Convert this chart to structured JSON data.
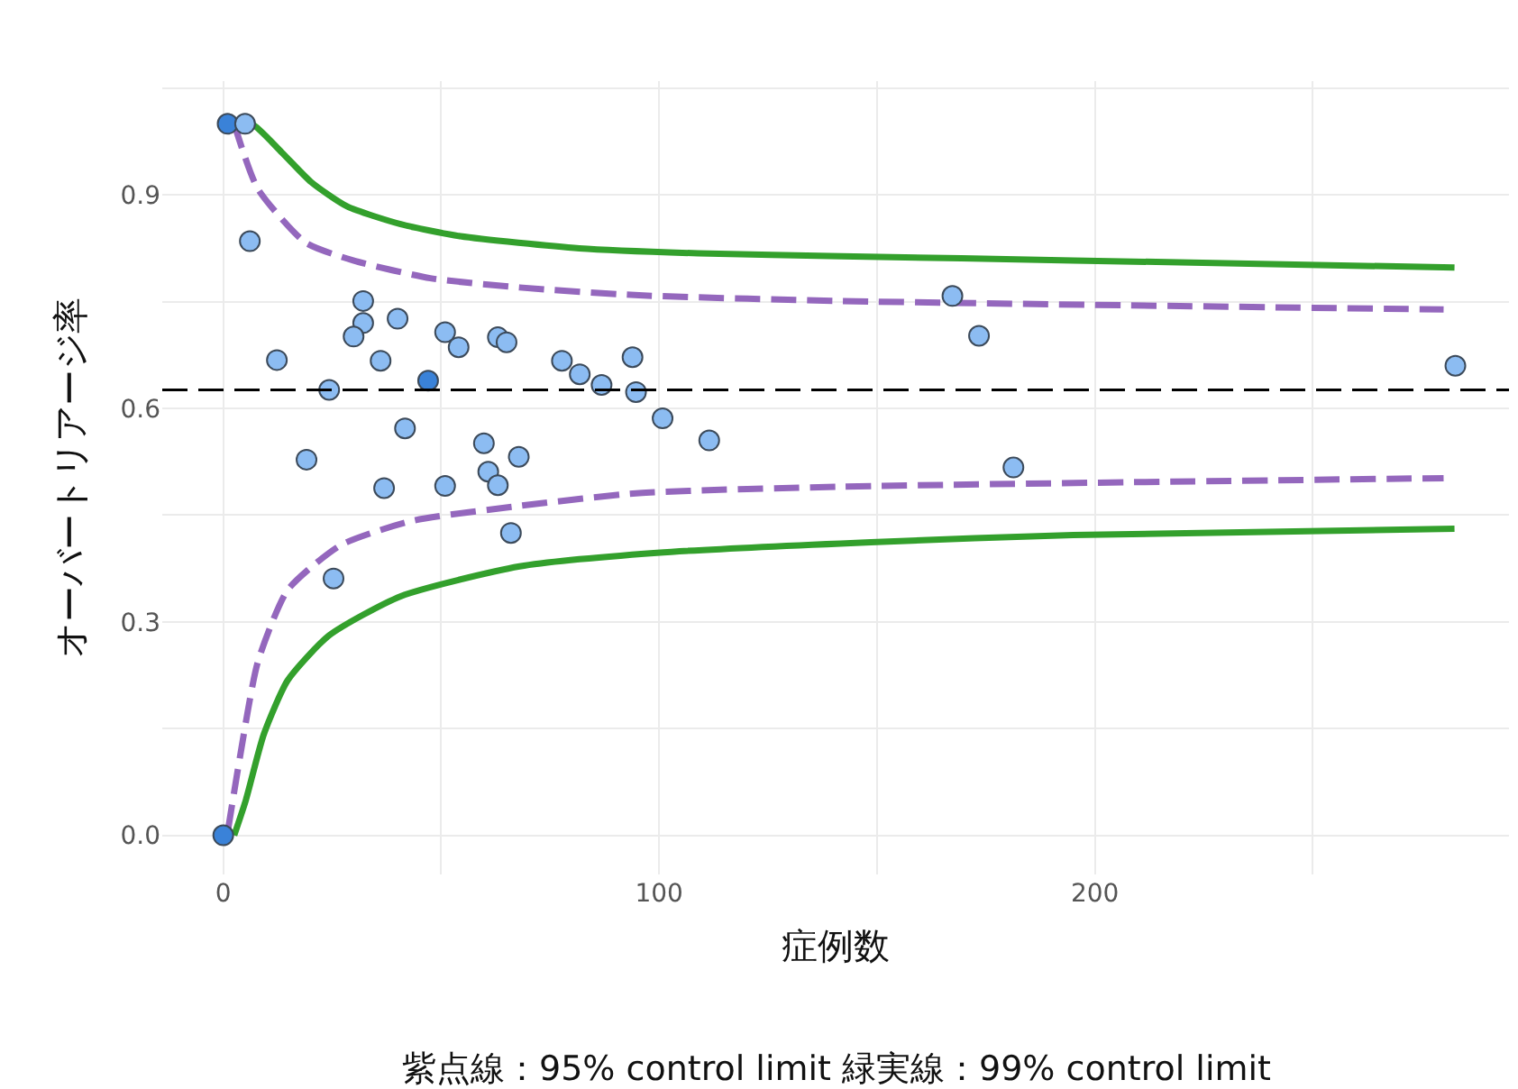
{
  "chart_data": {
    "type": "scatter",
    "xlabel": "症例数",
    "ylabel": "オーバートリアージ率",
    "annotations": [
      "紫点線：95% control limit 緑実線：99% control limit"
    ],
    "xlim": [
      -14,
      295
    ],
    "ylim": [
      -0.055,
      1.06
    ],
    "xticks": [
      0,
      {
        "value": 50,
        "label": null
      },
      100,
      {
        "value": 150,
        "label": null
      },
      200,
      {
        "value": 250,
        "label": null
      }
    ],
    "yticks": [
      {
        "value": 0,
        "label": "0.0"
      },
      {
        "value": 0.15,
        "label": null
      },
      {
        "value": 0.3,
        "label": "0.3"
      },
      {
        "value": 0.45,
        "label": null
      },
      {
        "value": 0.6,
        "label": "0.6"
      },
      {
        "value": 0.75,
        "label": null
      },
      {
        "value": 0.9,
        "label": "0.9"
      },
      {
        "value": 1.05,
        "label": null
      }
    ],
    "grid": true,
    "ref_lines": [
      {
        "axis": "y",
        "value": 0.626,
        "color": "#000000",
        "line_style": "dashed"
      }
    ],
    "series": [
      {
        "type": "line",
        "color": "#33a02c",
        "line_style": "solid",
        "x": [
          2.5,
          6.5,
          13.4,
          20.2,
          28.4,
          40.7,
          54.4,
          81.7,
          109,
          141.8,
          195,
          282.5
        ],
        "values": [
          1.0,
          1.0,
          0.96,
          0.918,
          0.884,
          0.859,
          0.842,
          0.825,
          0.818,
          0.814,
          0.808,
          0.798
        ]
      },
      {
        "type": "line",
        "color": "#33a02c",
        "line_style": "solid",
        "x": [
          2.5,
          5.2,
          9.3,
          14.8,
          24.3,
          40.7,
          68,
          99.5,
          148.6,
          195,
          282.5
        ],
        "values": [
          0,
          0.05,
          0.142,
          0.218,
          0.281,
          0.336,
          0.378,
          0.397,
          0.412,
          0.422,
          0.431
        ]
      },
      {
        "type": "line",
        "color": "#9467bd",
        "line_style": "dashed",
        "x": [
          2.5,
          7.9,
          18.9,
          29.8,
          47.5,
          68,
          95.4,
          141.8,
          280
        ],
        "values": [
          1.0,
          0.909,
          0.833,
          0.808,
          0.783,
          0.77,
          0.759,
          0.751,
          0.739
        ]
      },
      {
        "type": "line",
        "color": "#9467bd",
        "line_style": "dashed",
        "x": [
          1.1,
          3.8,
          7.9,
          14.8,
          27,
          43.4,
          68,
          95.4,
          141.8,
          280
        ],
        "values": [
          0.008,
          0.109,
          0.243,
          0.345,
          0.408,
          0.442,
          0.463,
          0.481,
          0.49,
          0.502
        ]
      },
      {
        "marker": "circle",
        "color": "#8cbcf2",
        "x": [
          0,
          1,
          5,
          6.1,
          12.3,
          24.3,
          19.1,
          25.3,
          32.1,
          32.1,
          29.9,
          36.1,
          40,
          41.7,
          36.9,
          47,
          50.9,
          54,
          50.9,
          59.8,
          60.8,
          63,
          67.8,
          66,
          63,
          65,
          77.7,
          81.8,
          86.8,
          93.9,
          94.7,
          100.8,
          111.5,
          167.3,
          173.4,
          181.3,
          282.7
        ],
        "values": [
          0,
          1.0,
          1.0,
          0.835,
          0.668,
          0.626,
          0.528,
          0.361,
          0.751,
          0.72,
          0.701,
          0.667,
          0.726,
          0.572,
          0.488,
          0.639,
          0.707,
          0.686,
          0.491,
          0.551,
          0.511,
          0.492,
          0.532,
          0.425,
          0.7,
          0.693,
          0.667,
          0.648,
          0.633,
          0.672,
          0.623,
          0.586,
          0.555,
          0.758,
          0.702,
          0.517,
          0.66
        ],
        "colors": [
          "#3a82d8",
          "#3a82d8",
          "#8cbcf2",
          "#8cbcf2",
          "#8cbcf2",
          "#8cbcf2",
          "#8cbcf2",
          "#8cbcf2",
          "#8cbcf2",
          "#8cbcf2",
          "#8cbcf2",
          "#8cbcf2",
          "#8cbcf2",
          "#8cbcf2",
          "#8cbcf2",
          "#3a82d8",
          "#8cbcf2",
          "#8cbcf2",
          "#8cbcf2",
          "#8cbcf2",
          "#8cbcf2",
          "#8cbcf2",
          "#8cbcf2",
          "#8cbcf2",
          "#8cbcf2",
          "#8cbcf2",
          "#8cbcf2",
          "#8cbcf2",
          "#8cbcf2",
          "#8cbcf2",
          "#8cbcf2",
          "#8cbcf2",
          "#8cbcf2",
          "#8cbcf2",
          "#8cbcf2",
          "#8cbcf2",
          "#8cbcf2"
        ]
      }
    ]
  }
}
